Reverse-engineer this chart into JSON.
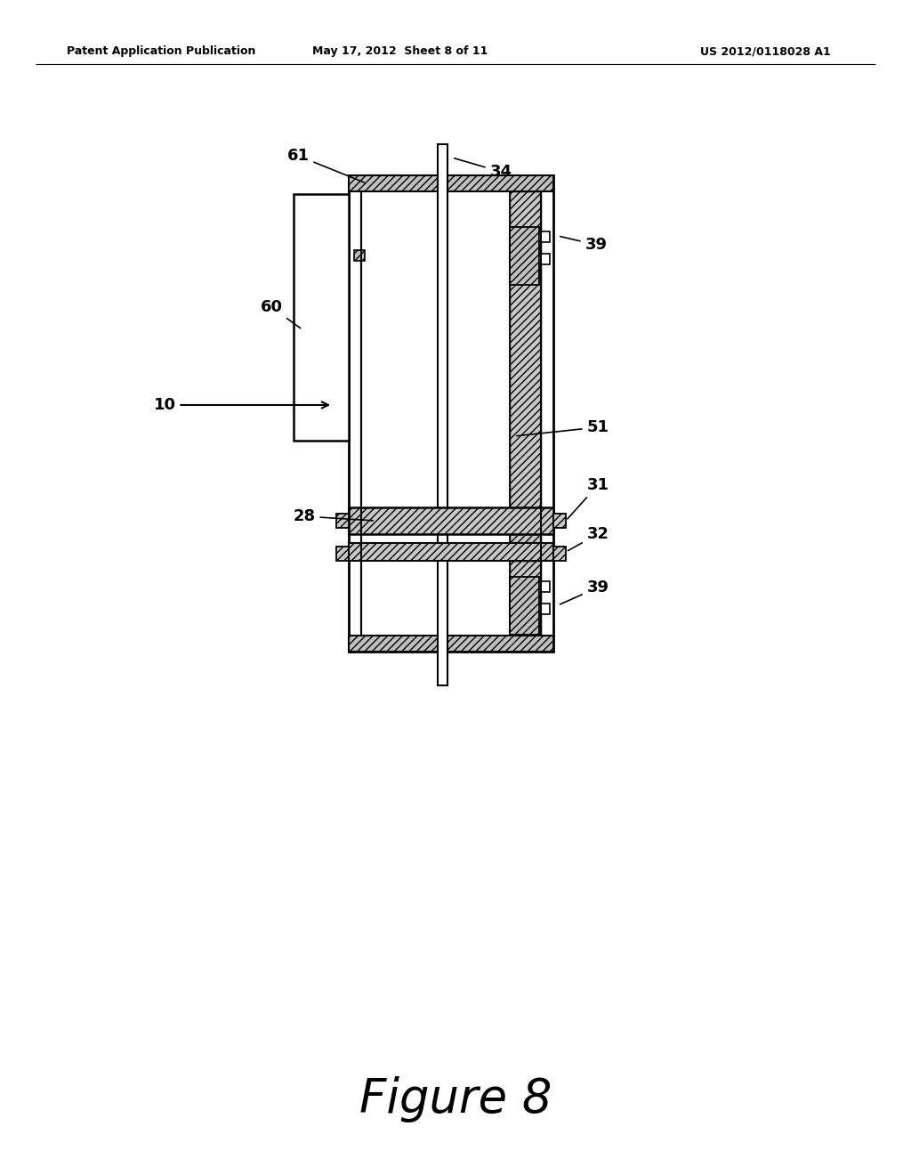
{
  "background_color": "#ffffff",
  "header_left": "Patent Application Publication",
  "header_mid": "May 17, 2012  Sheet 8 of 11",
  "header_right": "US 2012/0118028 A1",
  "figure_label": "Figure 8",
  "hatch_color": "#aaaaaa",
  "line_color": "#000000"
}
